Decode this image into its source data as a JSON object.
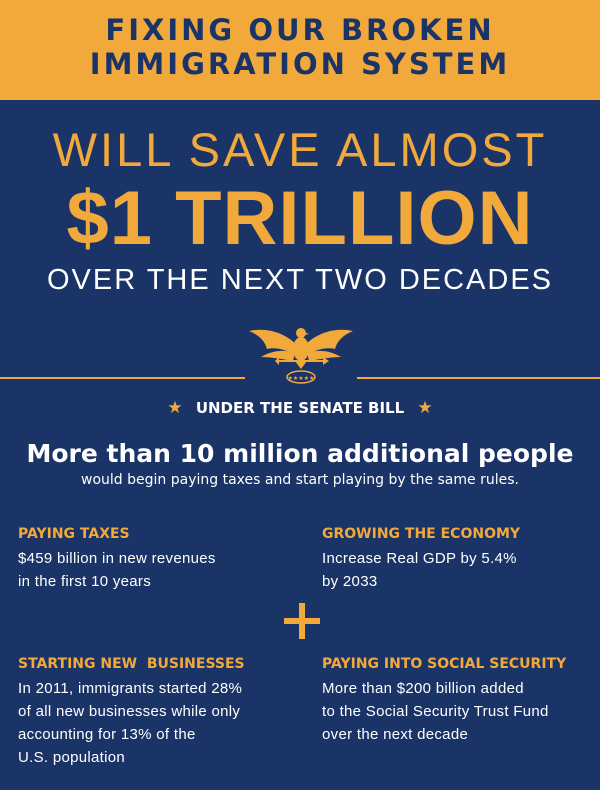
{
  "header": {
    "line1": "FIXING OUR BROKEN",
    "line2": "IMMIGRATION SYSTEM"
  },
  "headline": {
    "will_save": "WILL SAVE ALMOST",
    "amount": "$1 TRILLION",
    "period": "OVER THE NEXT TWO DECADES"
  },
  "emblem": {
    "icon": "eagle-seal-icon"
  },
  "senate": {
    "label": "UNDER THE SENATE BILL",
    "star": "★"
  },
  "summary": {
    "headline": "More than 10 million additional people",
    "subline": "would begin paying taxes and start playing by the same rules."
  },
  "blocks": [
    {
      "heading": "PAYING TAXES",
      "lines": [
        "$459 billion in new revenues",
        "in the first 10 years"
      ]
    },
    {
      "heading": "GROWING THE ECONOMY",
      "lines": [
        "Increase Real GDP by 5.4%",
        "by 2033"
      ]
    },
    {
      "heading": "STARTING NEW  BUSINESSES",
      "lines": [
        "In 2011, immigrants started 28%",
        "of all new businesses while only",
        "accounting for 13% of the",
        "U.S. population"
      ]
    },
    {
      "heading": "PAYING INTO SOCIAL SECURITY",
      "lines": [
        "More than $200 billion added",
        "to the Social Security Trust Fund",
        "over the next decade"
      ]
    }
  ],
  "colors": {
    "navy": "#1b3468",
    "gold": "#f2a93b",
    "white": "#ffffff"
  }
}
